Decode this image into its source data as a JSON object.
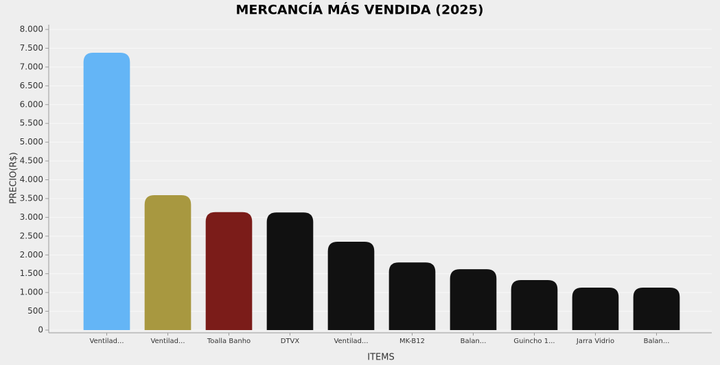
{
  "chart_data": {
    "type": "bar",
    "title": "MERCANCÍA MÁS VENDIDA (2025)",
    "x_label": "ITEMS",
    "y_label": "PRECIO(R$)",
    "categories": [
      "Ventilad...",
      "Ventilad...",
      "Toalla Banho",
      "DTVX",
      "Ventilad...",
      "MK-B12",
      "Balan...",
      "Guincho 1...",
      "Jarra Vidrio",
      "Balan..."
    ],
    "values": [
      7380,
      3590,
      3140,
      3130,
      2350,
      1800,
      1620,
      1330,
      1130,
      1130
    ],
    "colors": [
      "#64b5f6",
      "#a89840",
      "#7b1c19",
      "#111111",
      "#111111",
      "#111111",
      "#111111",
      "#111111",
      "#111111",
      "#111111"
    ],
    "ylim": [
      0,
      8000
    ],
    "yticks": [
      0,
      500,
      {
        "value": 1000,
        "label": "1.000"
      },
      {
        "value": 1500,
        "label": "1.500"
      },
      {
        "value": 2000,
        "label": "2.000"
      },
      {
        "value": 2500,
        "label": "2.500"
      },
      {
        "value": 3000,
        "label": "3.000"
      },
      {
        "value": 3500,
        "label": "3.500"
      },
      {
        "value": 4000,
        "label": "4.000"
      },
      {
        "value": 4500,
        "label": "4.500"
      },
      {
        "value": 5000,
        "label": "5.000"
      },
      {
        "value": 5500,
        "label": "5.500"
      },
      {
        "value": 6000,
        "label": "6.000"
      },
      {
        "value": 6500,
        "label": "6.500"
      },
      {
        "value": 7000,
        "label": "7.000"
      },
      {
        "value": 7500,
        "label": "7.500"
      },
      {
        "value": 8000,
        "label": "8.000"
      }
    ],
    "grid": true
  }
}
